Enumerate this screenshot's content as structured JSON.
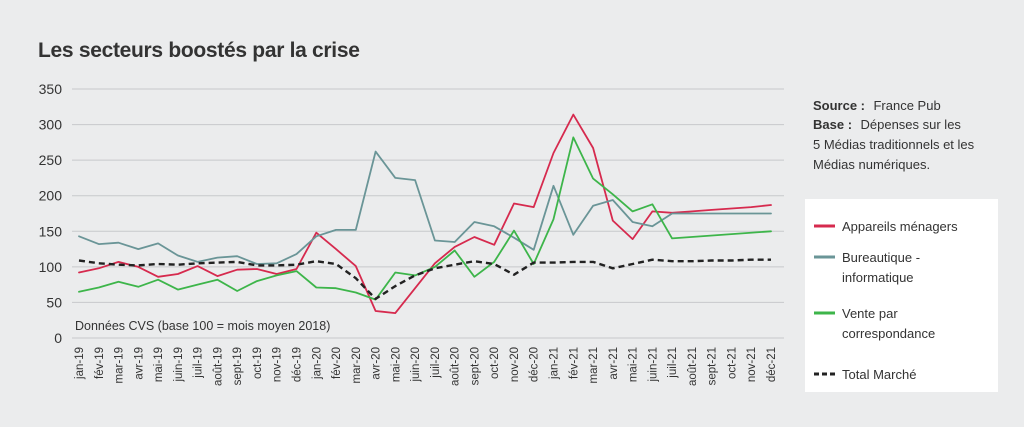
{
  "colors": {
    "background": "#ebeced",
    "appareils": "#d62a4e",
    "bureautique": "#6a9597",
    "vente": "#3db54a",
    "total": "#222222",
    "legend_box": "#ffffff"
  },
  "source": {
    "label1": "Source :",
    "text1": "France Pub",
    "label2": "Base :",
    "text2": "Dépenses sur les",
    "line3": "5 Médias traditionnels et les",
    "line4": "Médias numériques."
  },
  "chart_data": {
    "type": "line",
    "title": "Les secteurs boostés par la crise",
    "annotation": "Données CVS (base 100 = mois moyen 2018)",
    "ylim": [
      0,
      350
    ],
    "yticks": [
      0,
      50,
      100,
      150,
      200,
      250,
      300,
      350
    ],
    "grid": true,
    "legend_position": "right",
    "categories": [
      "jan-19",
      "fév-19",
      "mar-19",
      "avr-19",
      "mai-19",
      "juin-19",
      "juil-19",
      "août-19",
      "sept-19",
      "oct-19",
      "nov-19",
      "déc-19",
      "jan-20",
      "fév-20",
      "mar-20",
      "avr-20",
      "mai-20",
      "juin-20",
      "juil-20",
      "août-20",
      "sept-20",
      "oct-20",
      "nov-20",
      "déc-20",
      "jan-21",
      "fév-21",
      "mar-21",
      "avr-21",
      "mai-21",
      "juin-21",
      "juil-21",
      "août-21",
      "sept-21",
      "oct-21",
      "nov-21",
      "déc-21"
    ],
    "series": [
      {
        "name": "Appareils ménagers",
        "label_lines": [
          "Appareils ménagers"
        ],
        "color_key": "appareils",
        "dash": false,
        "values": [
          92,
          98,
          107,
          100,
          86,
          90,
          101,
          87,
          96,
          97,
          90,
          97,
          148,
          125,
          101,
          38,
          35,
          70,
          105,
          128,
          142,
          131,
          189,
          184,
          260,
          314,
          267,
          165,
          139,
          178,
          176,
          178,
          180,
          182,
          184,
          187
        ]
      },
      {
        "name": "Bureautique - informatique",
        "label_lines": [
          "Bureautique -",
          "informatique"
        ],
        "color_key": "bureautique",
        "dash": false,
        "values": [
          143,
          132,
          134,
          125,
          133,
          116,
          107,
          113,
          115,
          104,
          105,
          118,
          143,
          152,
          152,
          262,
          225,
          222,
          137,
          135,
          163,
          157,
          141,
          124,
          214,
          145,
          186,
          194,
          163,
          157,
          175,
          175,
          175,
          175,
          175,
          175
        ]
      },
      {
        "name": "Vente par correspondance",
        "label_lines": [
          "Vente par",
          "correspondance"
        ],
        "color_key": "vente",
        "dash": false,
        "values": [
          65,
          71,
          79,
          72,
          82,
          68,
          75,
          82,
          66,
          80,
          88,
          94,
          71,
          70,
          64,
          54,
          92,
          88,
          100,
          123,
          86,
          107,
          151,
          104,
          167,
          282,
          224,
          202,
          178,
          188,
          140,
          null,
          null,
          null,
          null,
          150
        ]
      },
      {
        "name": "Total Marché",
        "label_lines": [
          "Total Marché"
        ],
        "color_key": "total",
        "dash": true,
        "values": [
          109,
          105,
          103,
          102,
          104,
          103,
          105,
          106,
          107,
          102,
          102,
          103,
          108,
          104,
          84,
          55,
          73,
          88,
          98,
          103,
          108,
          104,
          89,
          106,
          106,
          107,
          107,
          98,
          104,
          110,
          108,
          108,
          109,
          109,
          110,
          110
        ]
      }
    ]
  }
}
